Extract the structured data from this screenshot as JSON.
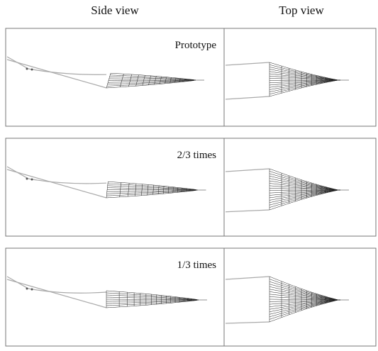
{
  "headers": {
    "side": "Side view",
    "top": "Top view"
  },
  "rows": [
    {
      "label": "Prototype"
    },
    {
      "label": "2/3 times"
    },
    {
      "label": "1/3 times"
    }
  ]
}
